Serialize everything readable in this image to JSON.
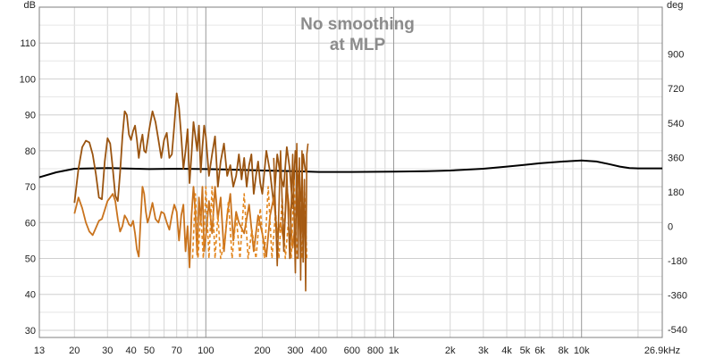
{
  "chart_data": {
    "type": "line",
    "title_lines": [
      "No smoothing",
      "at MLP"
    ],
    "y_left_unit": "dB",
    "y_right_unit": "deg",
    "x_scale": "log",
    "xlim": [
      13,
      26900
    ],
    "ylim": [
      28,
      120
    ],
    "y2lim": [
      -582,
      1146
    ],
    "grid": true,
    "x_tick_labels": [
      {
        "v": 13,
        "t": "13"
      },
      {
        "v": 20,
        "t": "20"
      },
      {
        "v": 30,
        "t": "30"
      },
      {
        "v": 40,
        "t": "40"
      },
      {
        "v": 50,
        "t": "50"
      },
      {
        "v": 70,
        "t": "70"
      },
      {
        "v": 100,
        "t": "100"
      },
      {
        "v": 200,
        "t": "200"
      },
      {
        "v": 300,
        "t": "300"
      },
      {
        "v": 400,
        "t": "400"
      },
      {
        "v": 600,
        "t": "600"
      },
      {
        "v": 800,
        "t": "800"
      },
      {
        "v": 1000,
        "t": "1k"
      },
      {
        "v": 2000,
        "t": "2k"
      },
      {
        "v": 3000,
        "t": "3k"
      },
      {
        "v": 4000,
        "t": "4k"
      },
      {
        "v": 5000,
        "t": "5k"
      },
      {
        "v": 6000,
        "t": "6k"
      },
      {
        "v": 8000,
        "t": "8k"
      },
      {
        "v": 10000,
        "t": "10k"
      },
      {
        "v": 26900,
        "t": "26.9kHz"
      }
    ],
    "y_ticks": [
      30,
      40,
      50,
      60,
      70,
      80,
      90,
      100,
      110
    ],
    "y2_ticks": [
      -540,
      -360,
      -180,
      0,
      180,
      360,
      540,
      720,
      900
    ],
    "series": [
      {
        "axis": "left",
        "color": "#000000",
        "width": 2,
        "x": [
          13,
          16,
          20,
          30,
          50,
          70,
          100,
          150,
          200,
          300,
          400,
          600,
          1000,
          1500,
          2000,
          3000,
          4000,
          5000,
          6000,
          8000,
          10000,
          12000,
          14000,
          16000,
          18000,
          20000,
          26900
        ],
        "y": [
          72.6,
          74.0,
          75.0,
          75.2,
          74.9,
          75.0,
          74.9,
          74.7,
          74.5,
          74.3,
          74.1,
          74.1,
          74.2,
          74.3,
          74.5,
          75.0,
          75.6,
          76.1,
          76.5,
          77.0,
          77.3,
          77.0,
          76.3,
          75.6,
          75.2,
          75.1,
          75.1
        ]
      },
      {
        "axis": "left",
        "color": "#9a5410",
        "width": 1.8,
        "x": [
          20,
          21,
          22,
          23,
          24,
          25,
          26,
          27,
          28,
          29,
          30,
          31,
          32,
          33,
          34,
          35,
          36,
          37,
          38,
          39,
          40,
          41,
          42,
          43,
          44,
          45,
          46,
          47,
          48,
          50,
          52,
          54,
          56,
          58,
          60,
          62,
          64,
          66,
          68,
          70,
          72,
          74,
          76,
          78,
          80,
          82,
          84,
          86,
          88,
          90,
          92,
          94,
          96,
          98,
          100,
          104,
          108,
          112,
          116,
          120,
          125,
          130,
          135,
          140,
          145,
          150,
          155,
          160,
          165,
          170,
          175,
          180,
          185,
          190,
          195,
          200,
          210,
          220,
          230,
          240,
          250,
          260,
          270,
          280,
          290,
          300,
          310,
          320,
          330,
          340
        ],
        "y": [
          65.5,
          75.0,
          81.0,
          82.8,
          82.3,
          79.0,
          73.5,
          67.0,
          66.5,
          77.0,
          83.5,
          82.0,
          75.0,
          67.5,
          66.0,
          74.0,
          84.0,
          91.0,
          90.0,
          84.5,
          83.0,
          85.5,
          87.0,
          83.0,
          78.0,
          82.0,
          84.5,
          80.0,
          79.5,
          86.0,
          91.0,
          88.0,
          83.0,
          78.0,
          83.0,
          85.0,
          78.0,
          79.0,
          87.0,
          96.0,
          92.0,
          84.0,
          75.0,
          80.0,
          86.0,
          71.0,
          79.0,
          88.0,
          84.0,
          80.0,
          87.0,
          74.0,
          81.0,
          87.0,
          84.0,
          73.0,
          79.0,
          84.0,
          70.0,
          77.0,
          82.0,
          73.0,
          76.0,
          70.0,
          73.0,
          79.0,
          72.0,
          78.0,
          70.0,
          76.0,
          79.0,
          68.0,
          73.0,
          77.0,
          71.0,
          68.0,
          80.0,
          74.0,
          65.0,
          79.0,
          73.0,
          70.0,
          81.0,
          75.0,
          64.0,
          80.0,
          72.0,
          66.0,
          79.0,
          74.0
        ]
      },
      {
        "axis": "left",
        "color": "#c9731d",
        "width": 1.8,
        "x": [
          20,
          21,
          22,
          23,
          24,
          25,
          26,
          27,
          28,
          29,
          30,
          31,
          32,
          33,
          34,
          35,
          36,
          37,
          38,
          39,
          40,
          41,
          42,
          43,
          44,
          45,
          46,
          47,
          48,
          49,
          50,
          52,
          54,
          56,
          58,
          60,
          62,
          64,
          66,
          68,
          70,
          72,
          74,
          76,
          78,
          80,
          82,
          84,
          86,
          88,
          90,
          92,
          94,
          96,
          98,
          100,
          104,
          108,
          112,
          116,
          120,
          125,
          130,
          135,
          140,
          145,
          150,
          160,
          170,
          180,
          190,
          200,
          210,
          220,
          230,
          240,
          250,
          260,
          270,
          280,
          290,
          300,
          310,
          320,
          330,
          340
        ],
        "y": [
          62.5,
          67.0,
          64.0,
          60.0,
          57.5,
          56.5,
          58.5,
          60.5,
          61.0,
          63.5,
          66.0,
          67.0,
          68.0,
          66.0,
          61.0,
          57.5,
          59.0,
          62.0,
          61.0,
          59.5,
          59.0,
          60.5,
          57.0,
          52.5,
          50.5,
          61.0,
          70.0,
          68.0,
          63.0,
          60.0,
          61.5,
          65.5,
          61.0,
          60.0,
          63.0,
          62.5,
          60.0,
          58.0,
          62.0,
          65.0,
          63.0,
          55.0,
          62.0,
          65.0,
          52.0,
          59.0,
          47.5,
          62.0,
          70.0,
          63.0,
          51.0,
          67.0,
          60.0,
          70.0,
          52.0,
          56.0,
          66.0,
          57.0,
          70.0,
          61.0,
          67.0,
          52.0,
          62.0,
          68.0,
          55.0,
          63.0,
          60.0,
          57.0,
          65.0,
          52.0,
          62.0,
          57.0,
          50.5,
          62.0,
          67.0,
          56.0,
          60.0,
          55.0,
          70.0,
          63.0,
          53.0,
          60.0,
          66.0,
          56.0,
          62.0,
          58.0
        ]
      },
      {
        "axis": "left",
        "color": "#e3871f",
        "width": 1.6,
        "dash": "4,3",
        "x": [
          85,
          88,
          91,
          94,
          97,
          100,
          104,
          108,
          112,
          116,
          120,
          126,
          132,
          138,
          145,
          152,
          160,
          168,
          176,
          185,
          195,
          205,
          215,
          225,
          235,
          245,
          255,
          265,
          275,
          285,
          295,
          305,
          315,
          325,
          335,
          345
        ],
        "y": [
          50,
          68,
          50,
          63,
          50,
          70,
          50,
          70,
          50,
          62,
          50,
          55,
          66,
          50,
          62,
          50,
          68,
          50,
          58,
          50,
          64,
          50,
          70,
          50,
          63,
          50,
          67,
          50,
          60,
          50,
          72,
          50,
          66,
          50,
          70,
          50
        ]
      },
      {
        "axis": "left",
        "color": "#a55a12",
        "width": 1.6,
        "x": [
          230,
          240,
          250,
          260,
          270,
          280,
          290,
          300,
          305,
          310,
          315,
          320,
          325,
          330,
          335,
          340,
          345,
          350
        ],
        "y": [
          78,
          48,
          80,
          52,
          74,
          50,
          79,
          46,
          82,
          50,
          78,
          44,
          80,
          49,
          72,
          41,
          79,
          82
        ]
      }
    ]
  }
}
